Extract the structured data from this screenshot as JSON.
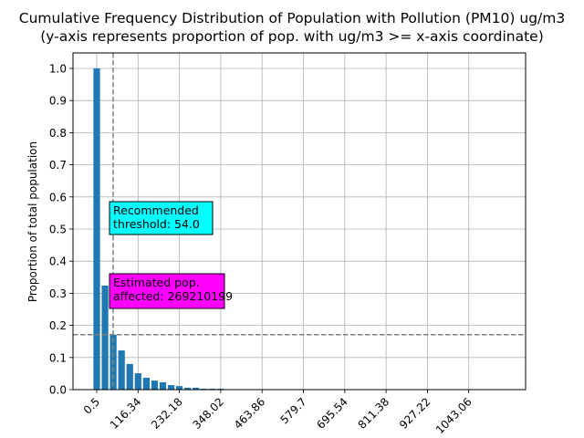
{
  "chart_data": {
    "type": "bar",
    "title": "Cumulative Frequency Distribution of Population with Pollution (PM10) ug/m3",
    "subtitle": "(y-axis represents proportion of pop. with ug/m3 >= x-axis coordinate)",
    "xlabel": "",
    "ylabel": "Proportion of total population",
    "bar_color": "#1f77b4",
    "grid": true,
    "x": [
      0.5,
      23.67,
      46.84,
      70.0,
      93.17,
      116.34,
      139.51,
      162.68,
      185.85,
      209.01,
      232.18,
      255.35,
      278.52,
      301.69,
      324.85,
      348.02
    ],
    "values": [
      1.0,
      0.324,
      0.171,
      0.122,
      0.08,
      0.051,
      0.037,
      0.028,
      0.023,
      0.014,
      0.011,
      0.006,
      0.006,
      0.003,
      0.003,
      0.003
    ],
    "bin_width": 23.168,
    "xlim": [
      -67.5,
      1200.0
    ],
    "ylim": [
      0,
      1.05
    ],
    "xticks": [
      0.5,
      116.34,
      232.18,
      348.02,
      463.86,
      579.7,
      695.54,
      811.38,
      927.22,
      1043.06
    ],
    "xtick_labels": [
      "0.5",
      "116.34",
      "232.18",
      "348.02",
      "463.86",
      "579.7",
      "695.54",
      "811.38",
      "927.22",
      "1043.06"
    ],
    "yticks": [
      0.0,
      0.1,
      0.2,
      0.3,
      0.4,
      0.5,
      0.6,
      0.7,
      0.8,
      0.9,
      1.0
    ],
    "ytick_labels": [
      "0.0",
      "0.1",
      "0.2",
      "0.3",
      "0.4",
      "0.5",
      "0.6",
      "0.7",
      "0.8",
      "0.9",
      "1.0"
    ],
    "threshold_line": {
      "x": 54.0,
      "color": "#808080",
      "style": "dashed"
    },
    "affected_line": {
      "y": 0.171,
      "color": "#808080",
      "style": "dashed"
    },
    "annotations": [
      {
        "id": "threshold",
        "lines": [
          "Recommended",
          "threshold: 54.0"
        ],
        "bg": "#00ffff",
        "x": 54.0,
        "y": 0.5
      },
      {
        "id": "affected",
        "lines": [
          "Estimated pop.",
          "affected: 269210199"
        ],
        "bg": "#ff00ff",
        "x": 54.0,
        "y": 0.28
      }
    ]
  }
}
